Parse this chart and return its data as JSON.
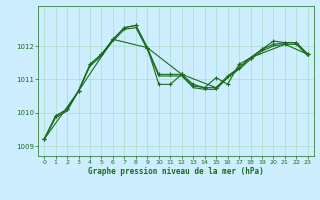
{
  "background_color": "#cceeff",
  "grid_color": "#aaddcc",
  "line_color": "#1a6b1a",
  "title": "Graphe pression niveau de la mer (hPa)",
  "xlim": [
    -0.5,
    23.5
  ],
  "ylim": [
    1008.7,
    1013.2
  ],
  "yticks": [
    1009,
    1010,
    1011,
    1012
  ],
  "xticks": [
    0,
    1,
    2,
    3,
    4,
    5,
    6,
    7,
    8,
    9,
    10,
    11,
    12,
    13,
    14,
    15,
    16,
    17,
    18,
    19,
    20,
    21,
    22,
    23
  ],
  "line1_x": [
    0,
    1,
    2,
    3,
    4,
    5,
    6,
    7,
    8,
    9,
    10,
    11,
    12,
    13,
    14,
    15,
    16,
    17,
    18,
    19,
    20,
    21,
    22,
    23
  ],
  "line1_y": [
    1009.2,
    1009.9,
    1010.1,
    1010.65,
    1011.45,
    1011.75,
    1012.2,
    1012.55,
    1012.62,
    1011.95,
    1011.15,
    1011.15,
    1011.15,
    1010.8,
    1010.75,
    1010.75,
    1011.1,
    1011.35,
    1011.65,
    1011.9,
    1012.05,
    1012.1,
    1012.1,
    1011.75
  ],
  "line2_x": [
    0,
    1,
    2,
    3,
    4,
    5,
    6,
    7,
    8,
    9,
    10,
    11,
    12,
    13,
    14,
    15,
    16,
    17,
    18,
    19,
    20,
    21,
    22,
    23
  ],
  "line2_y": [
    1009.2,
    1009.85,
    1010.05,
    1010.65,
    1011.4,
    1011.7,
    1012.15,
    1012.5,
    1012.55,
    1011.9,
    1011.1,
    1011.1,
    1011.1,
    1010.75,
    1010.7,
    1010.7,
    1011.05,
    1011.3,
    1011.6,
    1011.85,
    1012.0,
    1012.05,
    1012.05,
    1011.7
  ],
  "line3_x": [
    0,
    3,
    6,
    9,
    12,
    15,
    18,
    21,
    23
  ],
  "line3_y": [
    1009.2,
    1010.65,
    1012.2,
    1011.95,
    1011.15,
    1010.75,
    1011.65,
    1012.05,
    1011.75
  ],
  "line4_x": [
    0,
    1,
    2,
    3,
    4,
    5,
    6,
    7,
    8,
    9,
    10,
    11,
    12,
    13,
    14,
    15,
    16,
    17,
    18,
    19,
    20,
    21,
    22,
    23
  ],
  "line4_y": [
    1009.2,
    1009.9,
    1010.1,
    1010.65,
    1011.45,
    1011.75,
    1012.2,
    1012.55,
    1012.62,
    1011.95,
    1010.85,
    1010.85,
    1011.15,
    1010.85,
    1010.75,
    1011.05,
    1010.85,
    1011.45,
    1011.65,
    1011.9,
    1012.15,
    1012.1,
    1012.1,
    1011.75
  ]
}
